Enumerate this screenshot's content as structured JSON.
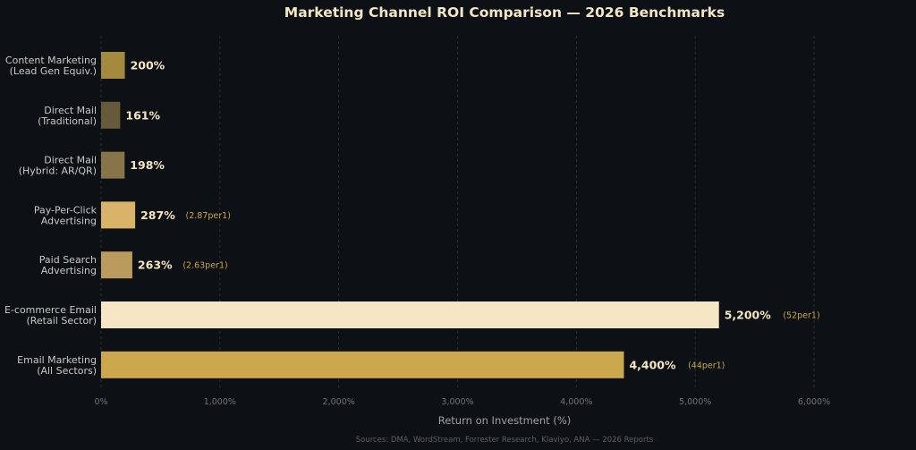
{
  "chart_data": {
    "type": "bar",
    "orientation": "horizontal",
    "title": "Marketing Channel ROI Comparison — 2026 Benchmarks",
    "xlabel": "Return on Investment (%)",
    "ylabel": "",
    "xlim": [
      0,
      6000
    ],
    "grid": true,
    "ticks": [
      {
        "value": 0,
        "label": "0%"
      },
      {
        "value": 1000,
        "label": "1,000%"
      },
      {
        "value": 2000,
        "label": "2,000%"
      },
      {
        "value": 3000,
        "label": "3,000%"
      },
      {
        "value": 4000,
        "label": "4,000%"
      },
      {
        "value": 5000,
        "label": "5,000%"
      },
      {
        "value": 6000,
        "label": "6,000%"
      }
    ],
    "bars": [
      {
        "label": [
          "Content Marketing",
          "(Lead Gen Equiv.)"
        ],
        "value": 200,
        "value_label": "200%",
        "annotation": "",
        "color": "#a48a3f"
      },
      {
        "label": [
          "Direct Mail",
          "(Traditional)"
        ],
        "value": 161,
        "value_label": "161%",
        "annotation": "",
        "color": "#675a3a"
      },
      {
        "label": [
          "Direct Mail",
          "(Hybrid: AR/QR)"
        ],
        "value": 198,
        "value_label": "198%",
        "annotation": "",
        "color": "#877549"
      },
      {
        "label": [
          "Pay-Per-Click",
          "Advertising"
        ],
        "value": 287,
        "value_label": "287%",
        "annotation": "(2.87per1)",
        "color": "#d9b468"
      },
      {
        "label": [
          "Paid Search",
          "Advertising"
        ],
        "value": 263,
        "value_label": "263%",
        "annotation": "(2.63per1)",
        "color": "#bb9a5d"
      },
      {
        "label": [
          "E-commerce Email",
          "(Retail Sector)"
        ],
        "value": 5200,
        "value_label": "5,200%",
        "annotation": "(52per1)",
        "color": "#f5e6c6"
      },
      {
        "label": [
          "Email Marketing",
          "(All Sectors)"
        ],
        "value": 4400,
        "value_label": "4,400%",
        "annotation": "(44per1)",
        "color": "#cba84b"
      }
    ],
    "source": "Sources: DMA, WordStream, Forrester Research, Klaviyo, ANA — 2026 Reports"
  }
}
